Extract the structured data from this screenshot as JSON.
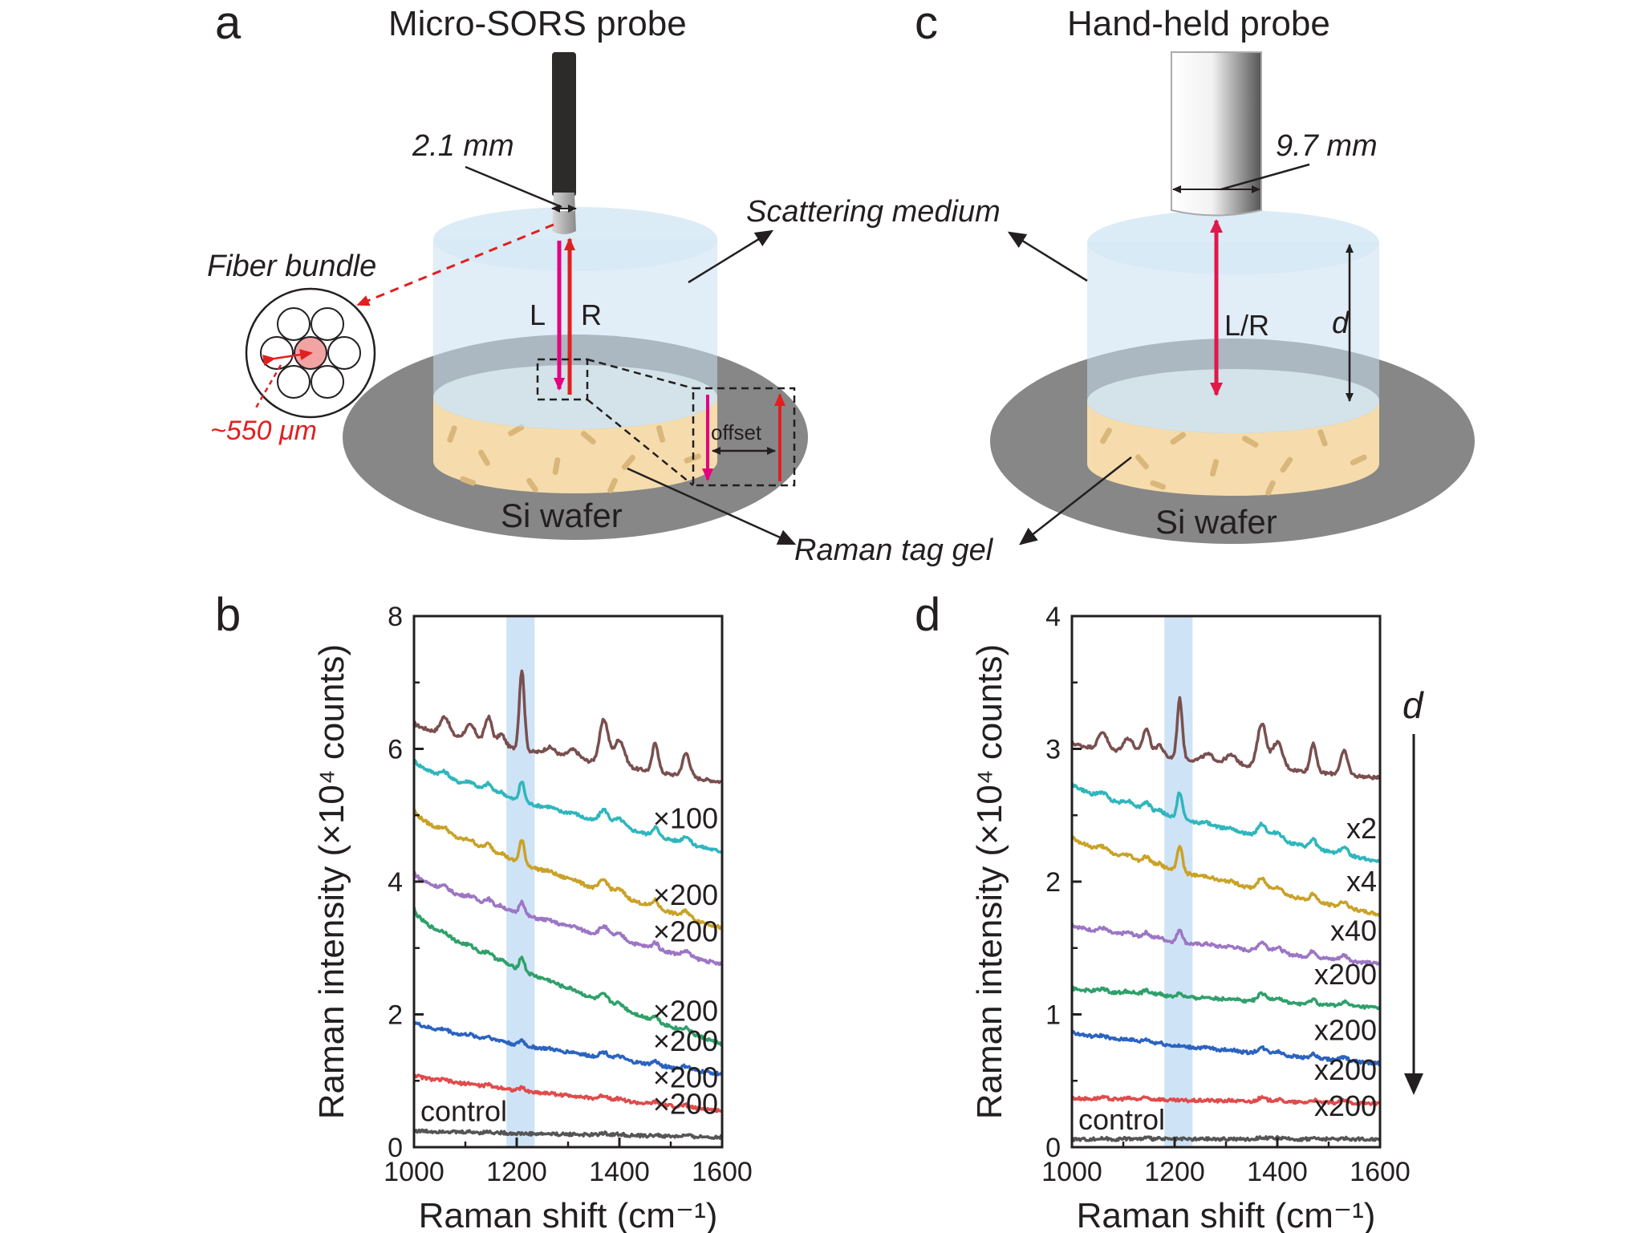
{
  "panels": {
    "a": {
      "letter": "a",
      "title": "Micro-SORS probe",
      "probe_diameter": "2.1 mm",
      "fiber_bundle": "Fiber bundle",
      "fiber_spacing": "~550 μm",
      "laser": "L",
      "raman": "R",
      "offset": "offset",
      "substrate": "Si wafer"
    },
    "c": {
      "letter": "c",
      "title": "Hand-held probe",
      "probe_diameter": "9.7 mm",
      "laser_raman": "L/R",
      "depth": "d",
      "substrate": "Si wafer"
    },
    "shared": {
      "scattering_medium": "Scattering medium",
      "tag_gel": "Raman tag gel"
    },
    "b": {
      "letter": "b"
    },
    "d": {
      "letter": "d",
      "depth_arrow_label": "d"
    }
  },
  "colors": {
    "dark_brown": "#7a4f4f",
    "cyan": "#2fb6bd",
    "gold": "#c9a227",
    "purple": "#9c76c4",
    "green": "#2fa06a",
    "blue": "#2b63c0",
    "red": "#e04b4b",
    "gray": "#555555",
    "highlight": "#cfe3f6",
    "laser": "#e4007f",
    "raman_arrow": "#e02020"
  },
  "chart_data": [
    {
      "type": "line",
      "panel": "b",
      "xlabel": "Raman shift (cm⁻¹)",
      "ylabel": "Raman intensity (×10⁴ counts)",
      "xlim": [
        1000,
        1600
      ],
      "ylim": [
        0,
        8
      ],
      "xticks": [
        "1000",
        "1200",
        "1400",
        "1600"
      ],
      "yticks": [
        "0",
        "2",
        "4",
        "6",
        "8"
      ],
      "highlight_band": [
        1180,
        1235
      ],
      "series": [
        {
          "name": "",
          "factor": "",
          "start": 6.4,
          "end": 5.5,
          "peak": 1.2,
          "color": "#7a4f4f"
        },
        {
          "name": "",
          "factor": "×100",
          "start": 5.85,
          "end": 4.45,
          "peak": 0.3,
          "color": "#2fb6bd"
        },
        {
          "name": "",
          "factor": "×200",
          "start": 5.1,
          "end": 3.3,
          "peak": 0.35,
          "color": "#c9a227"
        },
        {
          "name": "",
          "factor": "×200",
          "start": 4.15,
          "end": 2.75,
          "peak": 0.2,
          "color": "#9c76c4"
        },
        {
          "name": "",
          "factor": "×200",
          "start": 3.6,
          "end": 1.55,
          "peak": 0.2,
          "color": "#2fa06a"
        },
        {
          "name": "",
          "factor": "×200",
          "start": 1.9,
          "end": 1.1,
          "peak": 0.08,
          "color": "#2b63c0"
        },
        {
          "name": "",
          "factor": "×200",
          "start": 1.1,
          "end": 0.55,
          "peak": 0.05,
          "color": "#e04b4b"
        },
        {
          "name": "control",
          "factor": "×200",
          "start": 0.25,
          "end": 0.15,
          "peak": 0.0,
          "color": "#555555"
        }
      ]
    },
    {
      "type": "line",
      "panel": "d",
      "xlabel": "Raman shift (cm⁻¹)",
      "ylabel": "Raman intensity (×10⁴ counts)",
      "xlim": [
        1000,
        1600
      ],
      "ylim": [
        0,
        4
      ],
      "xticks": [
        "1000",
        "1200",
        "1400",
        "1600"
      ],
      "yticks": [
        "0",
        "1",
        "2",
        "3",
        "4"
      ],
      "highlight_band": [
        1180,
        1235
      ],
      "series": [
        {
          "name": "",
          "factor": "",
          "start": 3.05,
          "end": 2.78,
          "peak": 0.45,
          "color": "#7a4f4f"
        },
        {
          "name": "",
          "factor": "x2",
          "start": 2.75,
          "end": 2.15,
          "peak": 0.2,
          "color": "#2fb6bd"
        },
        {
          "name": "",
          "factor": "x4",
          "start": 2.35,
          "end": 1.75,
          "peak": 0.2,
          "color": "#c9a227"
        },
        {
          "name": "",
          "factor": "x40",
          "start": 1.68,
          "end": 1.38,
          "peak": 0.1,
          "color": "#9c76c4"
        },
        {
          "name": "",
          "factor": "x200",
          "start": 1.2,
          "end": 1.05,
          "peak": 0.03,
          "color": "#2fa06a"
        },
        {
          "name": "",
          "factor": "x200",
          "start": 0.87,
          "end": 0.63,
          "peak": 0.0,
          "color": "#2b63c0"
        },
        {
          "name": "",
          "factor": "x200",
          "start": 0.37,
          "end": 0.33,
          "peak": 0.0,
          "color": "#e04b4b"
        },
        {
          "name": "control",
          "factor": "x200",
          "start": 0.06,
          "end": 0.06,
          "peak": 0.0,
          "color": "#555555"
        }
      ]
    }
  ]
}
